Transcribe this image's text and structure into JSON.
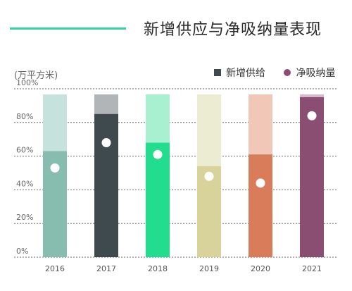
{
  "title": "新增供应与净吸纳量表现",
  "unit_label": "(万平方米)",
  "colors": {
    "accent": "#37d39f",
    "legend_supply": "#3f4a4e",
    "legend_absorption": "#8a4e72",
    "gridline": "#666666",
    "dot": "#ffffff"
  },
  "chart_data": {
    "type": "bar",
    "title": "新增供应与净吸纳量表现",
    "unit": "(万平方米)",
    "ylim": [
      0,
      100
    ],
    "y_ticks": [
      "0%",
      "20%",
      "40%",
      "60%",
      "80%",
      "100%"
    ],
    "y_tick_values": [
      0,
      20,
      40,
      60,
      80,
      100
    ],
    "grid": true,
    "legend_position": "top-right",
    "categories": [
      "2016",
      "2017",
      "2018",
      "2019",
      "2020",
      "2021"
    ],
    "series": [
      {
        "name": "新增供给",
        "marker": "square",
        "values": [
          63,
          85,
          68,
          54,
          61,
          95
        ]
      },
      {
        "name": "净吸纳量",
        "marker": "circle",
        "values": [
          53,
          68,
          61,
          48,
          44,
          84
        ]
      }
    ],
    "bar_colors": {
      "fill": [
        "#86bdaf",
        "#3f4a4e",
        "#22dd8d",
        "#d8d39a",
        "#d97c5a",
        "#8a4e72"
      ],
      "background": [
        "#c6e2dd",
        "#b2b5b8",
        "#a8f0cf",
        "#ececd2",
        "#f1c7b8",
        "#d9b9cc"
      ]
    }
  }
}
